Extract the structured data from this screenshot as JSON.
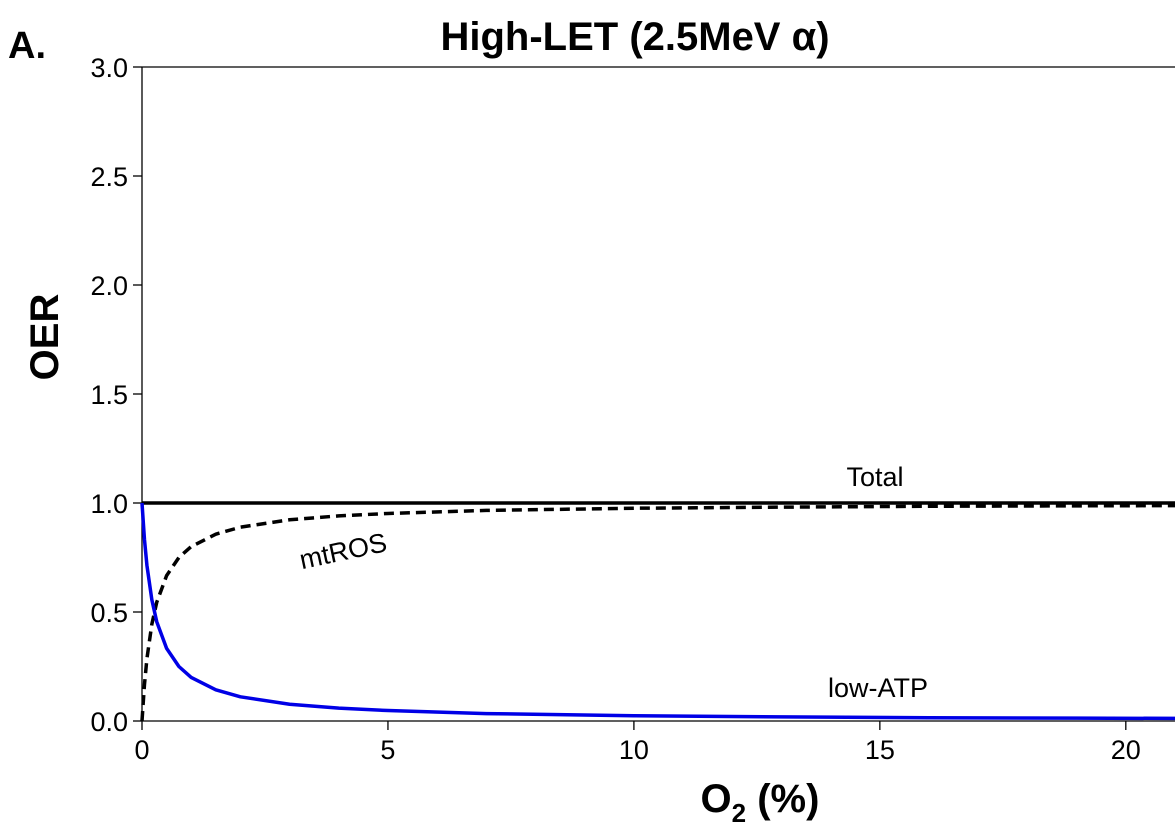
{
  "panel_label": "A.",
  "chart_data": {
    "type": "line",
    "title": "High-LET (2.5MeV α)",
    "xlabel_main": "O",
    "xlabel_sub": "2",
    "xlabel_unit": " (%)",
    "ylabel": "OER",
    "xlim": [
      0,
      21
    ],
    "ylim": [
      0,
      3.0
    ],
    "xticks": [
      0,
      5,
      10,
      15,
      20
    ],
    "xtick_labels": [
      "0",
      "5",
      "10",
      "15",
      "20"
    ],
    "yticks": [
      0,
      0.5,
      1.0,
      1.5,
      2.0,
      2.5,
      3.0
    ],
    "ytick_labels": [
      "0.0",
      "0.5",
      "1.0",
      "1.5",
      "2.0",
      "2.5",
      "3.0"
    ],
    "grid": false,
    "legend": "none",
    "series": [
      {
        "name": "Total",
        "color": "#000000",
        "dash": "solid",
        "x": [
          0,
          1,
          2,
          3,
          5,
          10,
          15,
          21
        ],
        "y": [
          1.0,
          1.0,
          1.0,
          1.0,
          1.0,
          1.0,
          1.0,
          1.0
        ]
      },
      {
        "name": "mtROS",
        "color": "#000000",
        "dash": "dashed",
        "x": [
          0,
          0.05,
          0.1,
          0.2,
          0.3,
          0.5,
          0.75,
          1,
          1.5,
          2,
          3,
          4,
          5,
          7,
          10,
          13,
          16,
          19,
          21
        ],
        "y": [
          0.0,
          0.167,
          0.286,
          0.444,
          0.545,
          0.667,
          0.75,
          0.8,
          0.857,
          0.889,
          0.923,
          0.941,
          0.952,
          0.966,
          0.976,
          0.981,
          0.985,
          0.987,
          0.988
        ]
      },
      {
        "name": "low-ATP",
        "color": "#0000e6",
        "dash": "solid",
        "x": [
          0,
          0.05,
          0.1,
          0.2,
          0.3,
          0.5,
          0.75,
          1,
          1.5,
          2,
          3,
          4,
          5,
          7,
          10,
          13,
          16,
          19,
          21
        ],
        "y": [
          1.0,
          0.833,
          0.714,
          0.556,
          0.455,
          0.333,
          0.25,
          0.2,
          0.143,
          0.111,
          0.077,
          0.059,
          0.048,
          0.034,
          0.024,
          0.019,
          0.015,
          0.013,
          0.012
        ]
      }
    ]
  }
}
